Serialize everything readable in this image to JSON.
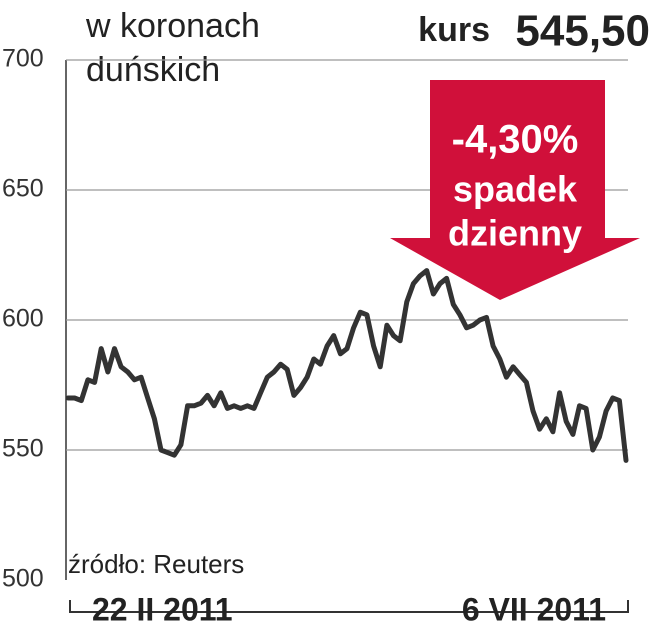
{
  "chart_data": {
    "type": "line",
    "y_label": [
      "w koronach",
      "duńskich"
    ],
    "annotations": [
      "kurs",
      "545,50",
      "-4,30%",
      "spadek",
      "dzienny"
    ],
    "source": "źródło: Reuters",
    "categories": [
      "22 II 2011",
      null,
      null,
      null,
      null,
      null,
      null,
      null,
      null,
      null,
      null,
      null,
      null,
      null,
      null,
      null,
      null,
      null,
      null,
      null,
      null,
      null,
      null,
      null,
      null,
      null,
      null,
      null,
      null,
      null,
      null,
      null,
      null,
      null,
      null,
      null,
      null,
      null,
      null,
      null,
      null,
      null,
      null,
      null,
      null,
      null,
      null,
      null,
      null,
      null,
      null,
      null,
      null,
      null,
      null,
      null,
      null,
      null,
      null,
      null,
      null,
      null,
      null,
      null,
      null,
      null,
      null,
      null,
      null,
      null,
      null,
      null,
      null,
      null,
      null,
      null,
      null,
      null,
      null,
      null,
      null,
      null,
      null,
      null,
      "6 VII 2011"
    ],
    "series": [
      {
        "color": "#333333",
        "values": [
          570,
          570,
          569,
          577,
          576,
          589,
          580,
          589,
          582,
          580,
          577,
          578,
          570,
          562,
          550,
          549,
          548,
          552,
          567,
          567,
          568,
          571,
          567,
          572,
          566,
          567,
          566,
          567,
          566,
          572,
          578,
          580,
          583,
          581,
          571,
          574,
          578,
          585,
          583,
          590,
          594,
          587,
          589,
          597,
          603,
          602,
          590,
          582,
          598,
          594,
          592,
          607,
          614,
          617,
          619,
          610,
          614,
          616,
          606,
          602,
          597,
          598,
          600,
          601,
          590,
          585,
          578,
          582,
          579,
          576,
          565,
          558,
          562,
          557,
          572,
          561,
          556,
          567,
          566,
          550,
          555,
          565,
          570,
          569,
          546
        ]
      }
    ],
    "ylim": [
      500,
      700
    ],
    "yticks": [
      500,
      550,
      600,
      650,
      700
    ],
    "grid": true
  }
}
